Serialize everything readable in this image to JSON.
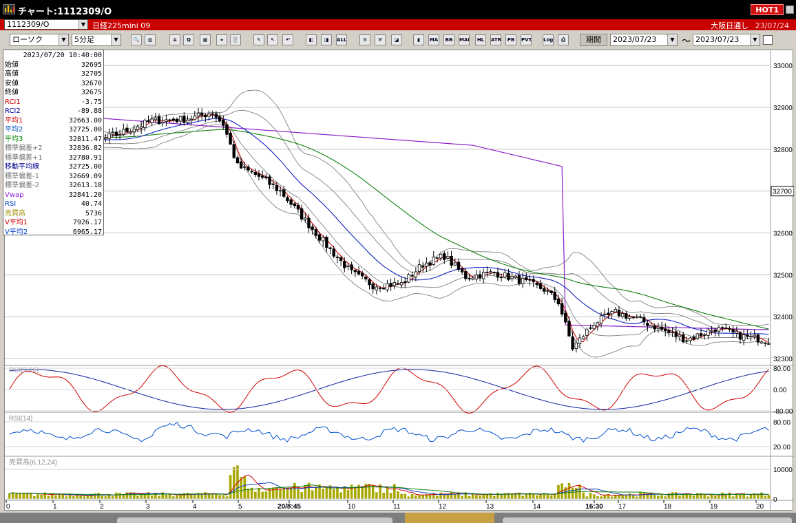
{
  "window": {
    "title": "チャート:1112309/O",
    "hot_badge": "HOT1"
  },
  "infobar": {
    "symbol": "1112309/O",
    "instrument": "日経225mini 09",
    "market": "大阪日通し",
    "market_date": "23/07/24"
  },
  "toolbar": {
    "chart_type": "ローソク",
    "interval": "5分足",
    "period_button": "期間",
    "date_from": "2023/07/23",
    "date_to": "2023/07/23",
    "tilde": "〜",
    "buttons": [
      {
        "name": "zoom-icon",
        "glyph": "🔍"
      },
      {
        "name": "grid-icon",
        "glyph": "▥"
      },
      {
        "name": "download-icon",
        "glyph": "⇊"
      },
      {
        "name": "chart-search-icon",
        "glyph": "Q"
      },
      {
        "name": "bar-chart-icon",
        "glyph": "▦"
      },
      {
        "name": "add-chart-icon",
        "glyph": "+"
      },
      {
        "name": "disabled-icon",
        "glyph": "░"
      },
      {
        "name": "pencil-icon",
        "glyph": "✎"
      },
      {
        "name": "cursor-icon",
        "glyph": "↖"
      },
      {
        "name": "undo-icon",
        "glyph": "↶"
      },
      {
        "name": "candle-left-icon",
        "glyph": "◧"
      },
      {
        "name": "candle-right-icon",
        "glyph": "◨"
      },
      {
        "name": "all-button",
        "glyph": "ALL"
      },
      {
        "name": "settings-icon",
        "glyph": "⚙"
      },
      {
        "name": "tools-icon",
        "glyph": "⚒"
      },
      {
        "name": "palette-icon",
        "glyph": "◪"
      },
      {
        "name": "bars-icon",
        "glyph": "▮"
      },
      {
        "name": "ma-button",
        "glyph": "MA"
      },
      {
        "name": "bb-button",
        "glyph": "BB"
      },
      {
        "name": "mae-button",
        "glyph": "MAE"
      },
      {
        "name": "hl-button",
        "glyph": "HL"
      },
      {
        "name": "atr-button",
        "glyph": "ATR"
      },
      {
        "name": "pb-button",
        "glyph": "PB"
      },
      {
        "name": "pvt-button",
        "glyph": "PVT"
      },
      {
        "name": "log-button",
        "glyph": "Log"
      },
      {
        "name": "print-icon",
        "glyph": "⎙"
      }
    ]
  },
  "datawin": {
    "datetime": "2023/07/20  10:40:00",
    "rows": [
      {
        "label": "始値",
        "value": "32695",
        "color": "#000000"
      },
      {
        "label": "高値",
        "value": "32705",
        "color": "#000000"
      },
      {
        "label": "安値",
        "value": "32670",
        "color": "#000000"
      },
      {
        "label": "終値",
        "value": "32675",
        "color": "#000000"
      },
      {
        "label": "RCI1",
        "value": "-3.75",
        "color": "#d00000"
      },
      {
        "label": "RCI2",
        "value": "-89.88",
        "color": "#000090"
      },
      {
        "label": "平均1",
        "value": "32663.00",
        "color": "#d00000"
      },
      {
        "label": "平均2",
        "value": "32725.00",
        "color": "#0050c0"
      },
      {
        "label": "平均3",
        "value": "32811.47",
        "color": "#008000"
      },
      {
        "label": "標準偏差+2",
        "value": "32836.82",
        "color": "#707070"
      },
      {
        "label": "標準偏差+1",
        "value": "32780.91",
        "color": "#707070"
      },
      {
        "label": "移動平均線",
        "value": "32725.00",
        "color": "#000090"
      },
      {
        "label": "標準偏差-1",
        "value": "32669.09",
        "color": "#707070"
      },
      {
        "label": "標準偏差-2",
        "value": "32613.18",
        "color": "#707070"
      },
      {
        "label": "Vwap",
        "value": "32841.20",
        "color": "#9020d0"
      },
      {
        "label": "RSI",
        "value": "40.74",
        "color": "#0040d0"
      },
      {
        "label": "売買高",
        "value": "5736",
        "color": "#a09000"
      },
      {
        "label": "V平均1",
        "value": "7926.17",
        "color": "#d00000"
      },
      {
        "label": "V平均2",
        "value": "6965.17",
        "color": "#0040d0"
      }
    ]
  },
  "chart_data": {
    "type": "candlestick",
    "price_ticks": [
      "33000",
      "32900",
      "32800",
      "32700",
      "32600",
      "32500",
      "32400",
      "32300"
    ],
    "price_range": [
      32290,
      33030
    ],
    "current_price_label": "32700",
    "x_labels": [
      "0",
      "1",
      "2",
      "3",
      "4",
      "5",
      "20/8:45",
      "10",
      "11",
      "12",
      "13",
      "14",
      "16:30",
      "17",
      "18",
      "19",
      "20"
    ],
    "rci_panel": {
      "title": "RCI(9,26)",
      "ticks": [
        "80.00",
        "0.00",
        "-80.00"
      ]
    },
    "rsi_panel": {
      "title": "RSI(14)",
      "ticks": [
        "80.00",
        "20.00"
      ]
    },
    "volume_panel": {
      "title": "売買高(6,12,24)",
      "ticks": [
        "10000",
        "0"
      ]
    },
    "close_keyframes": [
      [
        0,
        32845
      ],
      [
        10,
        32832
      ],
      [
        20,
        32808
      ],
      [
        30,
        32835
      ],
      [
        40,
        32868
      ],
      [
        50,
        32872
      ],
      [
        57,
        32888
      ],
      [
        60,
        32860
      ],
      [
        64,
        32760
      ],
      [
        70,
        32735
      ],
      [
        76,
        32700
      ],
      [
        82,
        32640
      ],
      [
        90,
        32560
      ],
      [
        96,
        32505
      ],
      [
        102,
        32475
      ],
      [
        110,
        32478
      ],
      [
        116,
        32525
      ],
      [
        122,
        32545
      ],
      [
        128,
        32495
      ],
      [
        136,
        32505
      ],
      [
        144,
        32485
      ],
      [
        150,
        32465
      ],
      [
        154,
        32435
      ],
      [
        158,
        32325
      ],
      [
        164,
        32385
      ],
      [
        170,
        32410
      ],
      [
        176,
        32395
      ],
      [
        184,
        32365
      ],
      [
        190,
        32345
      ],
      [
        198,
        32372
      ],
      [
        206,
        32352
      ],
      [
        212,
        32345
      ]
    ],
    "colors": {
      "up": "#ffffff",
      "down": "#000000",
      "ma1": "#d00000",
      "ma2": "#1020c0",
      "ma3": "#108010",
      "vwap": "#8a20c8",
      "bands": "#808080",
      "rsi": "#0050d0",
      "volume": "#a8a800"
    }
  }
}
